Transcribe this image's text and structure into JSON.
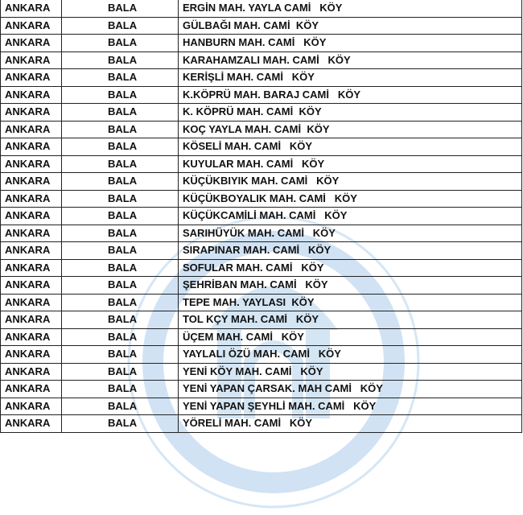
{
  "watermark": {
    "text": "DİYANET İŞLERİ BAŞKANLIĞI",
    "color": "#9ec3e6"
  },
  "rows": [
    {
      "city": "ANKARA",
      "district": "BALA",
      "name": "ERGİN MAH. YAYLA CAMİ   KÖY"
    },
    {
      "city": "ANKARA",
      "district": "BALA",
      "name": "GÜLBAĞI MAH. CAMİ  KÖY"
    },
    {
      "city": "ANKARA",
      "district": "BALA",
      "name": "HANBURN MAH. CAMİ   KÖY"
    },
    {
      "city": "ANKARA",
      "district": "BALA",
      "name": "KARAHAMZALI MAH. CAMİ   KÖY"
    },
    {
      "city": "ANKARA",
      "district": "BALA",
      "name": "KERİŞLİ MAH. CAMİ   KÖY"
    },
    {
      "city": "ANKARA",
      "district": "BALA",
      "name": "K.KÖPRÜ MAH. BARAJ CAMİ   KÖY"
    },
    {
      "city": "ANKARA",
      "district": "BALA",
      "name": "K. KÖPRÜ MAH. CAMİ  KÖY"
    },
    {
      "city": "ANKARA",
      "district": "BALA",
      "name": "KOÇ YAYLA MAH. CAMİ  KÖY"
    },
    {
      "city": "ANKARA",
      "district": "BALA",
      "name": "KÖSELİ MAH. CAMİ   KÖY"
    },
    {
      "city": "ANKARA",
      "district": "BALA",
      "name": "KUYULAR MAH. CAMİ   KÖY"
    },
    {
      "city": "ANKARA",
      "district": "BALA",
      "name": "KÜÇÜKBIYIK MAH. CAMİ   KÖY"
    },
    {
      "city": "ANKARA",
      "district": "BALA",
      "name": "KÜÇÜKBOYALIK MAH. CAMİ   KÖY"
    },
    {
      "city": "ANKARA",
      "district": "BALA",
      "name": "KÜÇÜKCAMİLİ MAH. CAMİ   KÖY"
    },
    {
      "city": "ANKARA",
      "district": "BALA",
      "name": "SARIHÜYÜK MAH. CAMİ   KÖY"
    },
    {
      "city": "ANKARA",
      "district": "BALA",
      "name": "SIRAPINAR MAH. CAMİ   KÖY"
    },
    {
      "city": "ANKARA",
      "district": "BALA",
      "name": "SOFULAR MAH. CAMİ   KÖY"
    },
    {
      "city": "ANKARA",
      "district": "BALA",
      "name": "ŞEHRİBAN MAH. CAMİ   KÖY"
    },
    {
      "city": "ANKARA",
      "district": "BALA",
      "name": "TEPE MAH. YAYLASI  KÖY"
    },
    {
      "city": "ANKARA",
      "district": "BALA",
      "name": "TOL KÇY MAH. CAMİ   KÖY"
    },
    {
      "city": "ANKARA",
      "district": "BALA",
      "name": "ÜÇEM MAH. CAMİ   KÖY"
    },
    {
      "city": "ANKARA",
      "district": "BALA",
      "name": "YAYLALI ÖZÜ MAH. CAMİ   KÖY"
    },
    {
      "city": "ANKARA",
      "district": "BALA",
      "name": "YENİ KÖY MAH. CAMİ   KÖY"
    },
    {
      "city": "ANKARA",
      "district": "BALA",
      "name": "YENİ YAPAN ÇARSAK. MAH CAMİ   KÖY"
    },
    {
      "city": "ANKARA",
      "district": "BALA",
      "name": "YENİ YAPAN ŞEYHLİ MAH. CAMİ   KÖY"
    },
    {
      "city": "ANKARA",
      "district": "BALA",
      "name": "YÖRELİ MAH. CAMİ   KÖY"
    }
  ]
}
